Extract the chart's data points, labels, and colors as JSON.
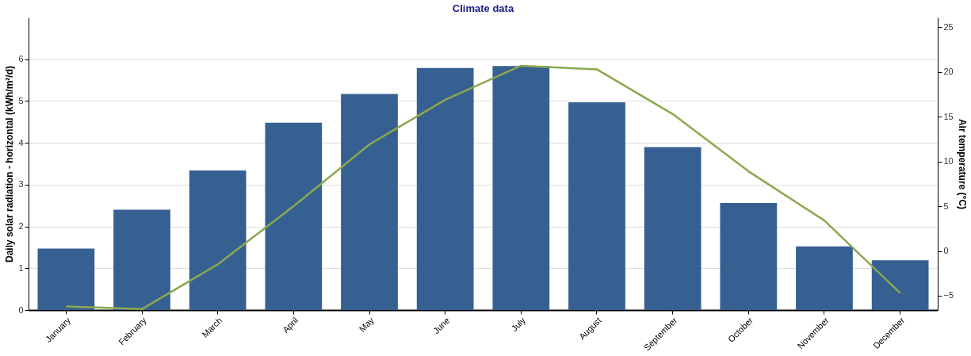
{
  "chart_data": {
    "type": "bar",
    "title": "Climate data",
    "ylabel": "Daily solar radiation - horizontal (kWh/m²/d)",
    "y2label": "Air temperature (°C)",
    "categories": [
      "January",
      "February",
      "March",
      "April",
      "May",
      "June",
      "July",
      "August",
      "September",
      "October",
      "November",
      "December"
    ],
    "series": [
      {
        "color": "#376092",
        "values": [
          1.47,
          2.4,
          3.34,
          4.48,
          5.17,
          5.79,
          5.84,
          4.97,
          3.9,
          2.56,
          1.52,
          1.19
        ]
      },
      {
        "type": "line",
        "axis": "y2",
        "color": "#8aa84f",
        "values": [
          -6.2,
          -6.5,
          -1.5,
          5.0,
          11.9,
          16.9,
          20.7,
          20.3,
          15.3,
          8.9,
          3.4,
          -4.7
        ]
      }
    ],
    "ylim": [
      0,
      7
    ],
    "yticks": [
      0,
      1,
      2,
      3,
      4,
      5,
      6
    ],
    "y2lim": [
      -6.6,
      26.1
    ],
    "y2ticks": [
      -5,
      0,
      5,
      10,
      15,
      20,
      25
    ],
    "grid": "y",
    "marker": "none",
    "line_style": "solid"
  }
}
